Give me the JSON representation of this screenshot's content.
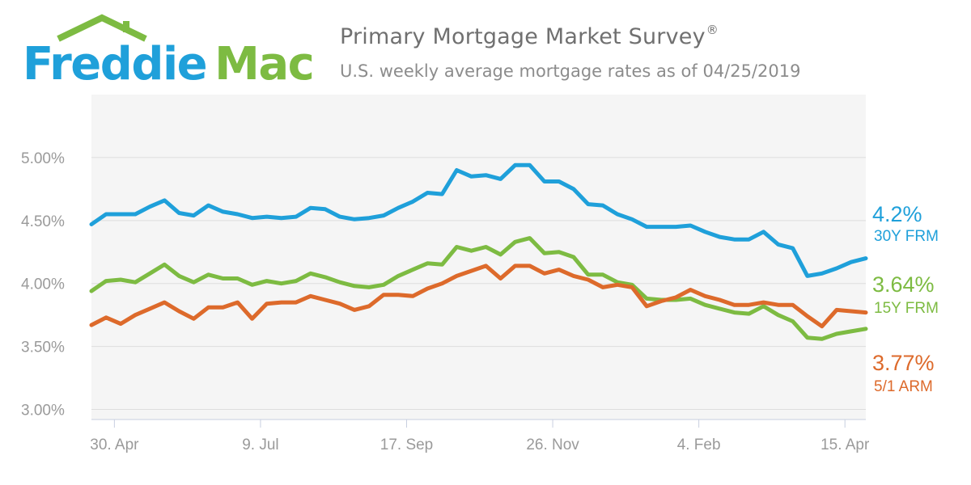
{
  "logo": {
    "text_left": "Freddie",
    "text_right": "Mac",
    "color_left": "#1fa0da",
    "color_right": "#7dbb42"
  },
  "header": {
    "title": "Primary Mortgage Market Survey",
    "title_mark": "®",
    "subtitle": "U.S. weekly average mortgage rates as of 04/25/2019"
  },
  "chart_data": {
    "type": "line",
    "title": "Primary Mortgage Market Survey®",
    "subtitle": "U.S. weekly average mortgage rates as of 04/25/2019",
    "x_start": "2018-04-19",
    "x_end": "2019-04-25",
    "x_tick_labels": [
      "30. Apr",
      "9. Jul",
      "17. Sep",
      "26. Nov",
      "4. Feb",
      "15. Apr"
    ],
    "y_tick_labels": [
      "3.00%",
      "3.50%",
      "4.00%",
      "4.50%",
      "5.00%"
    ],
    "y_ticks": [
      3.0,
      3.5,
      4.0,
      4.5,
      5.0
    ],
    "ylim": [
      2.92,
      5.5
    ],
    "grid": "horizontal",
    "background": "#f5f5f5",
    "series": [
      {
        "name": "30Y FRM",
        "color": "#1fa0da",
        "end_label": "4.2%",
        "values": [
          4.47,
          4.55,
          4.55,
          4.55,
          4.61,
          4.66,
          4.56,
          4.54,
          4.62,
          4.57,
          4.55,
          4.52,
          4.53,
          4.52,
          4.53,
          4.6,
          4.59,
          4.53,
          4.51,
          4.52,
          4.54,
          4.6,
          4.65,
          4.72,
          4.71,
          4.9,
          4.85,
          4.86,
          4.83,
          4.94,
          4.94,
          4.81,
          4.81,
          4.75,
          4.63,
          4.62,
          4.55,
          4.51,
          4.45,
          4.45,
          4.45,
          4.46,
          4.41,
          4.37,
          4.35,
          4.35,
          4.41,
          4.31,
          4.28,
          4.06,
          4.08,
          4.12,
          4.17,
          4.2
        ]
      },
      {
        "name": "15Y FRM",
        "color": "#7dbb42",
        "end_label": "3.64%",
        "values": [
          3.94,
          4.02,
          4.03,
          4.01,
          4.08,
          4.15,
          4.06,
          4.01,
          4.07,
          4.04,
          4.04,
          3.99,
          4.02,
          4.0,
          4.02,
          4.08,
          4.05,
          4.01,
          3.98,
          3.97,
          3.99,
          4.06,
          4.11,
          4.16,
          4.15,
          4.29,
          4.26,
          4.29,
          4.23,
          4.33,
          4.36,
          4.24,
          4.25,
          4.21,
          4.07,
          4.07,
          4.01,
          3.99,
          3.88,
          3.87,
          3.87,
          3.88,
          3.83,
          3.8,
          3.77,
          3.76,
          3.82,
          3.75,
          3.7,
          3.57,
          3.56,
          3.6,
          3.62,
          3.64
        ]
      },
      {
        "name": "5/1 ARM",
        "color": "#dd6a2b",
        "end_label": "3.77%",
        "values": [
          3.67,
          3.73,
          3.68,
          3.75,
          3.8,
          3.85,
          3.78,
          3.72,
          3.81,
          3.81,
          3.85,
          3.72,
          3.84,
          3.85,
          3.85,
          3.9,
          3.87,
          3.84,
          3.79,
          3.82,
          3.91,
          3.91,
          3.9,
          3.96,
          4.0,
          4.06,
          4.1,
          4.14,
          4.04,
          4.14,
          4.14,
          4.08,
          4.11,
          4.06,
          4.03,
          3.97,
          3.99,
          3.97,
          3.82,
          3.86,
          3.89,
          3.95,
          3.9,
          3.87,
          3.83,
          3.83,
          3.85,
          3.83,
          3.83,
          3.74,
          3.66,
          3.79,
          3.78,
          3.77
        ]
      }
    ]
  }
}
